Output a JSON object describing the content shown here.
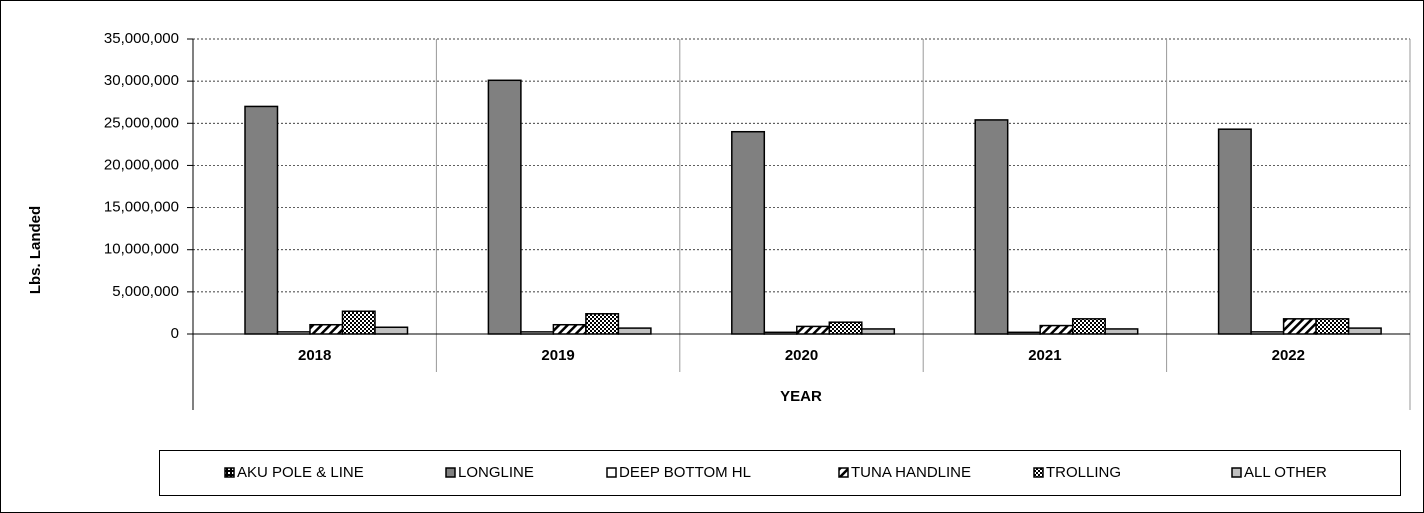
{
  "chart_data": {
    "type": "bar",
    "y_label": "Lbs. Landed",
    "x_label": "YEAR",
    "categories": [
      "2018",
      "2019",
      "2020",
      "2021",
      "2022"
    ],
    "series": [
      {
        "name": "AKU POLE & LINE",
        "color": "#000000",
        "pattern": "checker",
        "values": [
          0,
          0,
          0,
          0,
          0
        ]
      },
      {
        "name": "LONGLINE",
        "color": "#808080",
        "values": [
          27000000,
          30100000,
          24000000,
          25400000,
          24300000
        ]
      },
      {
        "name": "DEEP BOTTOM HL",
        "color": "#ffffff",
        "values": [
          250000,
          250000,
          200000,
          200000,
          250000
        ]
      },
      {
        "name": "TUNA HANDLINE",
        "color": "#000000",
        "pattern": "hatch",
        "values": [
          1100000,
          1100000,
          900000,
          1000000,
          1800000
        ]
      },
      {
        "name": "TROLLING",
        "color": "#000000",
        "pattern": "dots",
        "values": [
          2700000,
          2400000,
          1400000,
          1800000,
          1800000
        ]
      },
      {
        "name": "ALL OTHER",
        "color": "#c0c0c0",
        "values": [
          800000,
          700000,
          600000,
          600000,
          700000
        ]
      }
    ],
    "ylim": [
      0,
      35000000
    ],
    "yticks": [
      0,
      {
        "value": 5000000,
        "label": "5,000,000"
      },
      {
        "value": 10000000,
        "label": "10,000,000"
      },
      {
        "value": 15000000,
        "label": "15,000,000"
      },
      {
        "value": 20000000,
        "label": "20,000,000"
      },
      {
        "value": 25000000,
        "label": "25,000,000"
      },
      {
        "value": 30000000,
        "label": "30,000,000"
      },
      {
        "value": 35000000,
        "label": "35,000,000"
      }
    ],
    "grid": true,
    "legend": "bottom"
  }
}
